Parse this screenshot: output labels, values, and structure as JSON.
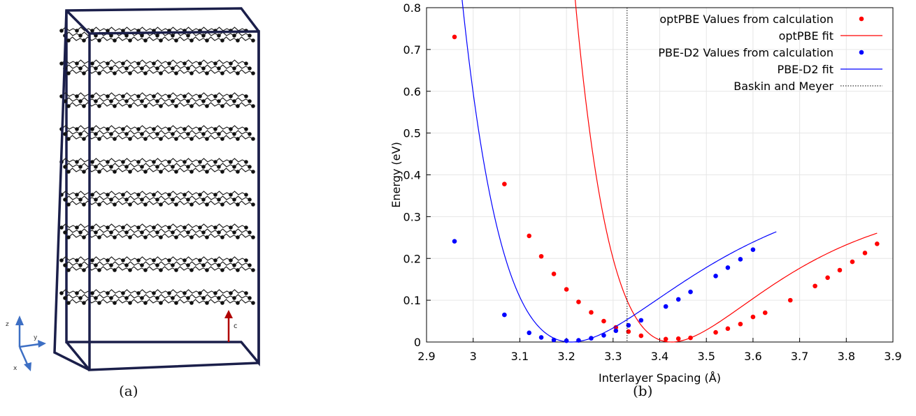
{
  "panel_a": {
    "caption": "(a)",
    "axis_labels": {
      "z": "z",
      "y": "y",
      "x": "x"
    },
    "lattice_label": "c",
    "layer_count": 9,
    "colors": {
      "frame": "#1b1f4a",
      "atom": "#111111",
      "lattice_vector": "#b00000",
      "axes": "#3d6fc4"
    }
  },
  "panel_b": {
    "caption": "(b)"
  },
  "chart_data": {
    "type": "scatter",
    "xlabel": "Interlayer Spacing (Å)",
    "ylabel": "Energy (eV)",
    "xlim": [
      2.9,
      3.9
    ],
    "ylim": [
      0,
      0.8
    ],
    "xticks": [
      "2.9",
      "3",
      "3.1",
      "3.2",
      "3.3",
      "3.4",
      "3.5",
      "3.6",
      "3.7",
      "3.8",
      "3.9"
    ],
    "yticks": [
      "0",
      "0.1",
      "0.2",
      "0.3",
      "0.4",
      "0.5",
      "0.6",
      "0.7",
      "0.8"
    ],
    "grid": true,
    "legend_position": "top-right",
    "legend": [
      {
        "label": "optPBE Values from calculation",
        "kind": "points",
        "color": "#ff0000"
      },
      {
        "label": "optPBE fit",
        "kind": "line",
        "color": "#ff0000"
      },
      {
        "label": "PBE-D2 Values from calculation",
        "kind": "points",
        "color": "#0000ff"
      },
      {
        "label": "PBE-D2 fit",
        "kind": "line",
        "color": "#0000ff"
      },
      {
        "label": "Baskin and Meyer",
        "kind": "dotted",
        "color": "#000000"
      }
    ],
    "series": [
      {
        "name": "optPBE Values from calculation",
        "color": "#ff0000",
        "x": [
          2.96,
          3.067,
          3.12,
          3.146,
          3.173,
          3.2,
          3.226,
          3.253,
          3.28,
          3.306,
          3.333,
          3.36,
          3.413,
          3.44,
          3.466,
          3.52,
          3.546,
          3.573,
          3.6,
          3.626,
          3.68,
          3.733,
          3.76,
          3.786,
          3.813,
          3.84,
          3.866
        ],
        "y": [
          0.73,
          0.378,
          0.254,
          0.205,
          0.163,
          0.126,
          0.096,
          0.071,
          0.05,
          0.035,
          0.025,
          0.015,
          0.007,
          0.008,
          0.01,
          0.023,
          0.032,
          0.043,
          0.06,
          0.07,
          0.1,
          0.134,
          0.154,
          0.172,
          0.192,
          0.213,
          0.235
        ]
      },
      {
        "name": "optPBE fit",
        "color": "#ff0000",
        "fit": {
          "x0": 3.425,
          "a": 0.35,
          "b": 4.5,
          "from": 2.96,
          "to": 3.866
        }
      },
      {
        "name": "PBE-D2 Values from calculation",
        "color": "#0000ff",
        "x": [
          2.96,
          3.067,
          3.12,
          3.146,
          3.173,
          3.2,
          3.226,
          3.253,
          3.28,
          3.306,
          3.333,
          3.36,
          3.413,
          3.44,
          3.466,
          3.52,
          3.546,
          3.573,
          3.6
        ],
        "y": [
          0.241,
          0.065,
          0.022,
          0.011,
          0.005,
          0.003,
          0.004,
          0.009,
          0.016,
          0.027,
          0.04,
          0.052,
          0.085,
          0.102,
          0.12,
          0.158,
          0.178,
          0.198,
          0.221
        ]
      },
      {
        "name": "PBE-D2 fit",
        "color": "#0000ff",
        "fit": {
          "x0": 3.21,
          "a": 0.4,
          "b": 3.8,
          "from": 2.96,
          "to": 3.65
        }
      },
      {
        "name": "Baskin and Meyer",
        "color": "#000000",
        "vline": 3.33
      }
    ]
  }
}
